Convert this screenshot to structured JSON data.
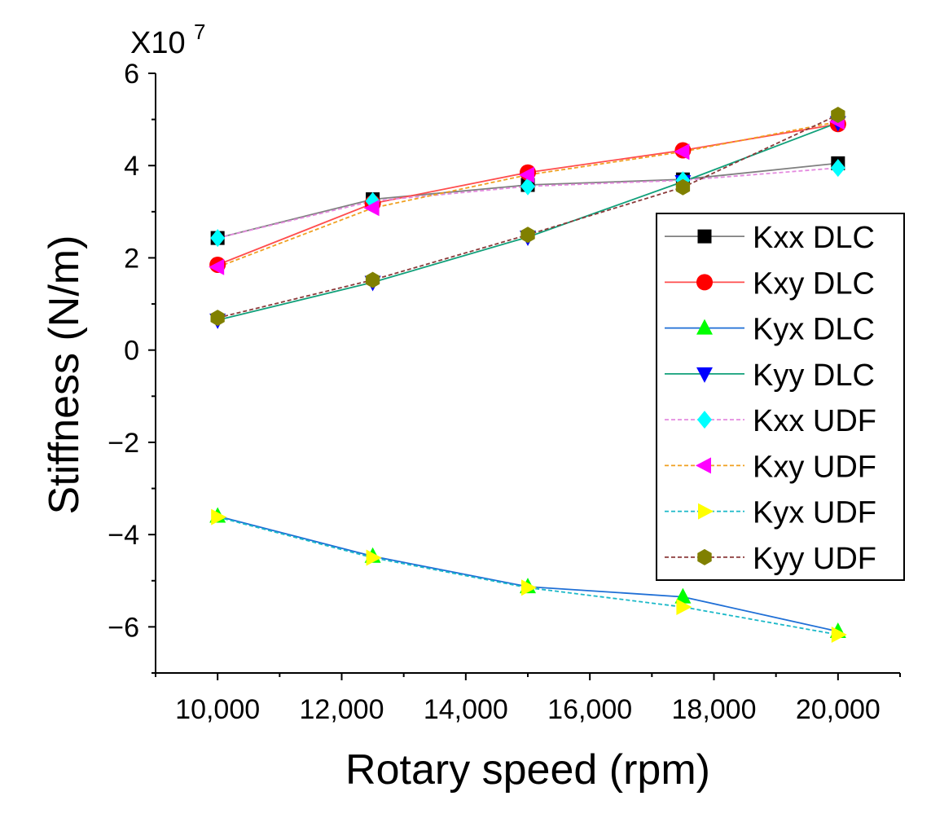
{
  "chart_data": {
    "type": "line",
    "xlabel": "Rotary speed (rpm)",
    "ylabel": "Stiffness (N/m)",
    "y_multiplier": "X10",
    "y_multiplier_exp": "7",
    "xlim": [
      9000,
      21000
    ],
    "ylim": [
      -7,
      6
    ],
    "x_ticks": [
      10000,
      12000,
      14000,
      16000,
      18000,
      20000
    ],
    "x_tick_labels": [
      "10,000",
      "12,000",
      "14,000",
      "16,000",
      "18,000",
      "20,000"
    ],
    "y_ticks": [
      -6,
      -4,
      -2,
      0,
      2,
      4,
      6
    ],
    "y_tick_labels": [
      "−6",
      "−4",
      "−2",
      "0",
      "2",
      "4",
      "6"
    ],
    "grid": false,
    "legend_position": "right",
    "x": [
      10000,
      12500,
      15000,
      17500,
      20000
    ],
    "series": [
      {
        "name": "Kxx DLC",
        "values": [
          2.43,
          3.27,
          3.58,
          3.7,
          4.05
        ],
        "color": "#000000",
        "line_color": "#808080",
        "dash": "solid",
        "marker": "square"
      },
      {
        "name": "Kxy DLC",
        "values": [
          1.85,
          3.18,
          3.85,
          4.33,
          4.9
        ],
        "color": "#ff0000",
        "line_color": "#ff4d4d",
        "dash": "solid",
        "marker": "circle"
      },
      {
        "name": "Kyx DLC",
        "values": [
          -3.6,
          -4.47,
          -5.13,
          -5.35,
          -6.1
        ],
        "color": "#00ff00",
        "line_color": "#1f6fd6",
        "dash": "solid",
        "marker": "triangle-up"
      },
      {
        "name": "Kyy DLC",
        "values": [
          0.65,
          1.47,
          2.45,
          3.65,
          4.93
        ],
        "color": "#0000ff",
        "line_color": "#11a07a",
        "dash": "solid",
        "marker": "triangle-down"
      },
      {
        "name": "Kxx UDF",
        "values": [
          2.43,
          3.23,
          3.55,
          3.68,
          3.95
        ],
        "color": "#00ffff",
        "line_color": "#e48adf",
        "dash": "dashed",
        "marker": "diamond"
      },
      {
        "name": "Kxy UDF",
        "values": [
          1.8,
          3.08,
          3.8,
          4.3,
          4.95
        ],
        "color": "#ff00ff",
        "line_color": "#f0a020",
        "dash": "dashed",
        "marker": "triangle-left"
      },
      {
        "name": "Kyx UDF",
        "values": [
          -3.62,
          -4.5,
          -5.15,
          -5.57,
          -6.17
        ],
        "color": "#ffff00",
        "line_color": "#1ab8c8",
        "dash": "dashed",
        "marker": "triangle-right"
      },
      {
        "name": "Kyy UDF",
        "values": [
          0.7,
          1.52,
          2.5,
          3.53,
          5.1
        ],
        "color": "#808000",
        "line_color": "#8b3a3a",
        "dash": "dashed",
        "marker": "hexagon"
      }
    ]
  }
}
